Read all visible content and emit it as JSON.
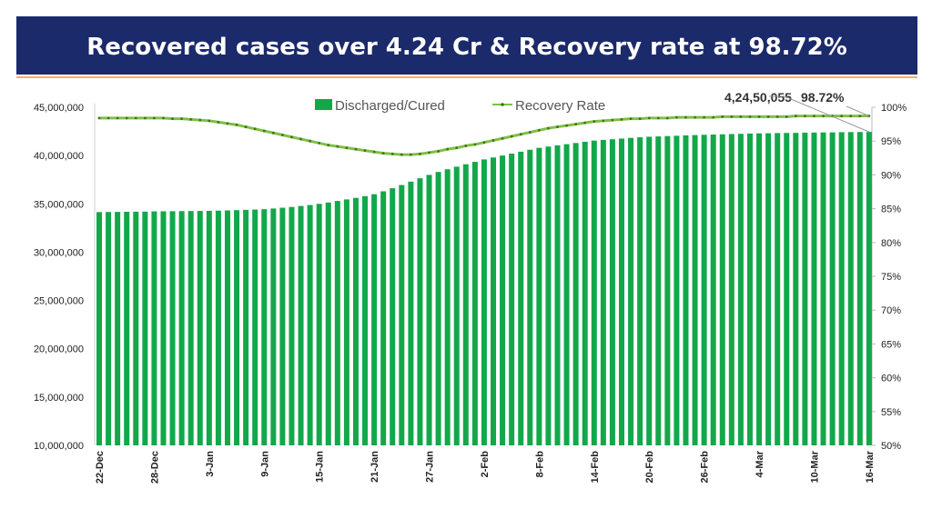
{
  "title": "Recovered cases over 4.24 Cr & Recovery rate at 98.72%",
  "colors": {
    "title_bg": "#1b2a6b",
    "bars": "#12a84a",
    "line": "#7dc242",
    "marker": "#4a6b2a"
  },
  "chart_data": {
    "type": "bar+line",
    "title": "Recovered cases over 4.24 Cr & Recovery rate at 98.72%",
    "legend": {
      "placement": "top",
      "entries": [
        "Discharged/Cured",
        "Recovery Rate"
      ]
    },
    "grid": false,
    "x_start": "22-Dec",
    "x_end": "16-Mar",
    "x_tick_labels": [
      "22-Dec",
      "28-Dec",
      "3-Jan",
      "9-Jan",
      "15-Jan",
      "21-Jan",
      "27-Jan",
      "2-Feb",
      "8-Feb",
      "14-Feb",
      "20-Feb",
      "26-Feb",
      "4-Mar",
      "10-Mar",
      "16-Mar"
    ],
    "y_left": {
      "range": [
        10000000,
        45000000
      ],
      "ticks": [
        "10,000,000",
        "15,000,000",
        "20,000,000",
        "25,000,000",
        "30,000,000",
        "35,000,000",
        "40,000,000",
        "45,000,000"
      ]
    },
    "y_right": {
      "range": [
        50,
        100
      ],
      "ticks": [
        "50%",
        "55%",
        "60%",
        "65%",
        "70%",
        "75%",
        "80%",
        "85%",
        "90%",
        "95%",
        "100%"
      ]
    },
    "series": [
      {
        "name": "Discharged/Cured",
        "type": "bar",
        "axis": "left",
        "values": [
          34150000,
          34160000,
          34170000,
          34180000,
          34190000,
          34200000,
          34220000,
          34230000,
          34240000,
          34250000,
          34260000,
          34270000,
          34280000,
          34300000,
          34320000,
          34350000,
          34380000,
          34410000,
          34450000,
          34520000,
          34600000,
          34680000,
          34780000,
          34880000,
          35000000,
          35140000,
          35300000,
          35460000,
          35620000,
          35800000,
          36000000,
          36300000,
          36620000,
          36950000,
          37300000,
          37650000,
          38000000,
          38300000,
          38580000,
          38850000,
          39100000,
          39350000,
          39600000,
          39800000,
          40000000,
          40200000,
          40400000,
          40600000,
          40800000,
          40930000,
          41060000,
          41180000,
          41300000,
          41430000,
          41550000,
          41620000,
          41690000,
          41760000,
          41830000,
          41890000,
          41950000,
          41980000,
          42020000,
          42050000,
          42090000,
          42120000,
          42150000,
          42180000,
          42200000,
          42230000,
          42250000,
          42280000,
          42300000,
          42310000,
          42330000,
          42340000,
          42350000,
          42370000,
          42380000,
          42390000,
          42400000,
          42420000,
          42430000,
          42440000,
          42450055
        ]
      },
      {
        "name": "Recovery Rate",
        "type": "line",
        "axis": "right",
        "unit": "%",
        "values": [
          98.4,
          98.4,
          98.4,
          98.4,
          98.4,
          98.4,
          98.4,
          98.4,
          98.3,
          98.3,
          98.2,
          98.1,
          98.0,
          97.8,
          97.6,
          97.4,
          97.1,
          96.8,
          96.5,
          96.2,
          95.9,
          95.6,
          95.3,
          95.0,
          94.7,
          94.4,
          94.2,
          94.0,
          93.8,
          93.6,
          93.4,
          93.2,
          93.1,
          93.0,
          93.0,
          93.1,
          93.3,
          93.5,
          93.8,
          94.0,
          94.3,
          94.5,
          94.8,
          95.1,
          95.4,
          95.7,
          96.0,
          96.3,
          96.6,
          96.9,
          97.1,
          97.3,
          97.5,
          97.7,
          97.9,
          98.0,
          98.1,
          98.2,
          98.3,
          98.3,
          98.4,
          98.4,
          98.4,
          98.5,
          98.5,
          98.5,
          98.5,
          98.5,
          98.6,
          98.6,
          98.6,
          98.6,
          98.6,
          98.6,
          98.6,
          98.6,
          98.7,
          98.7,
          98.7,
          98.7,
          98.7,
          98.7,
          98.7,
          98.7,
          98.72
        ]
      }
    ],
    "annotations": {
      "last_bar_label": "4,24,50,055",
      "last_rate_label": "98.72%"
    }
  }
}
